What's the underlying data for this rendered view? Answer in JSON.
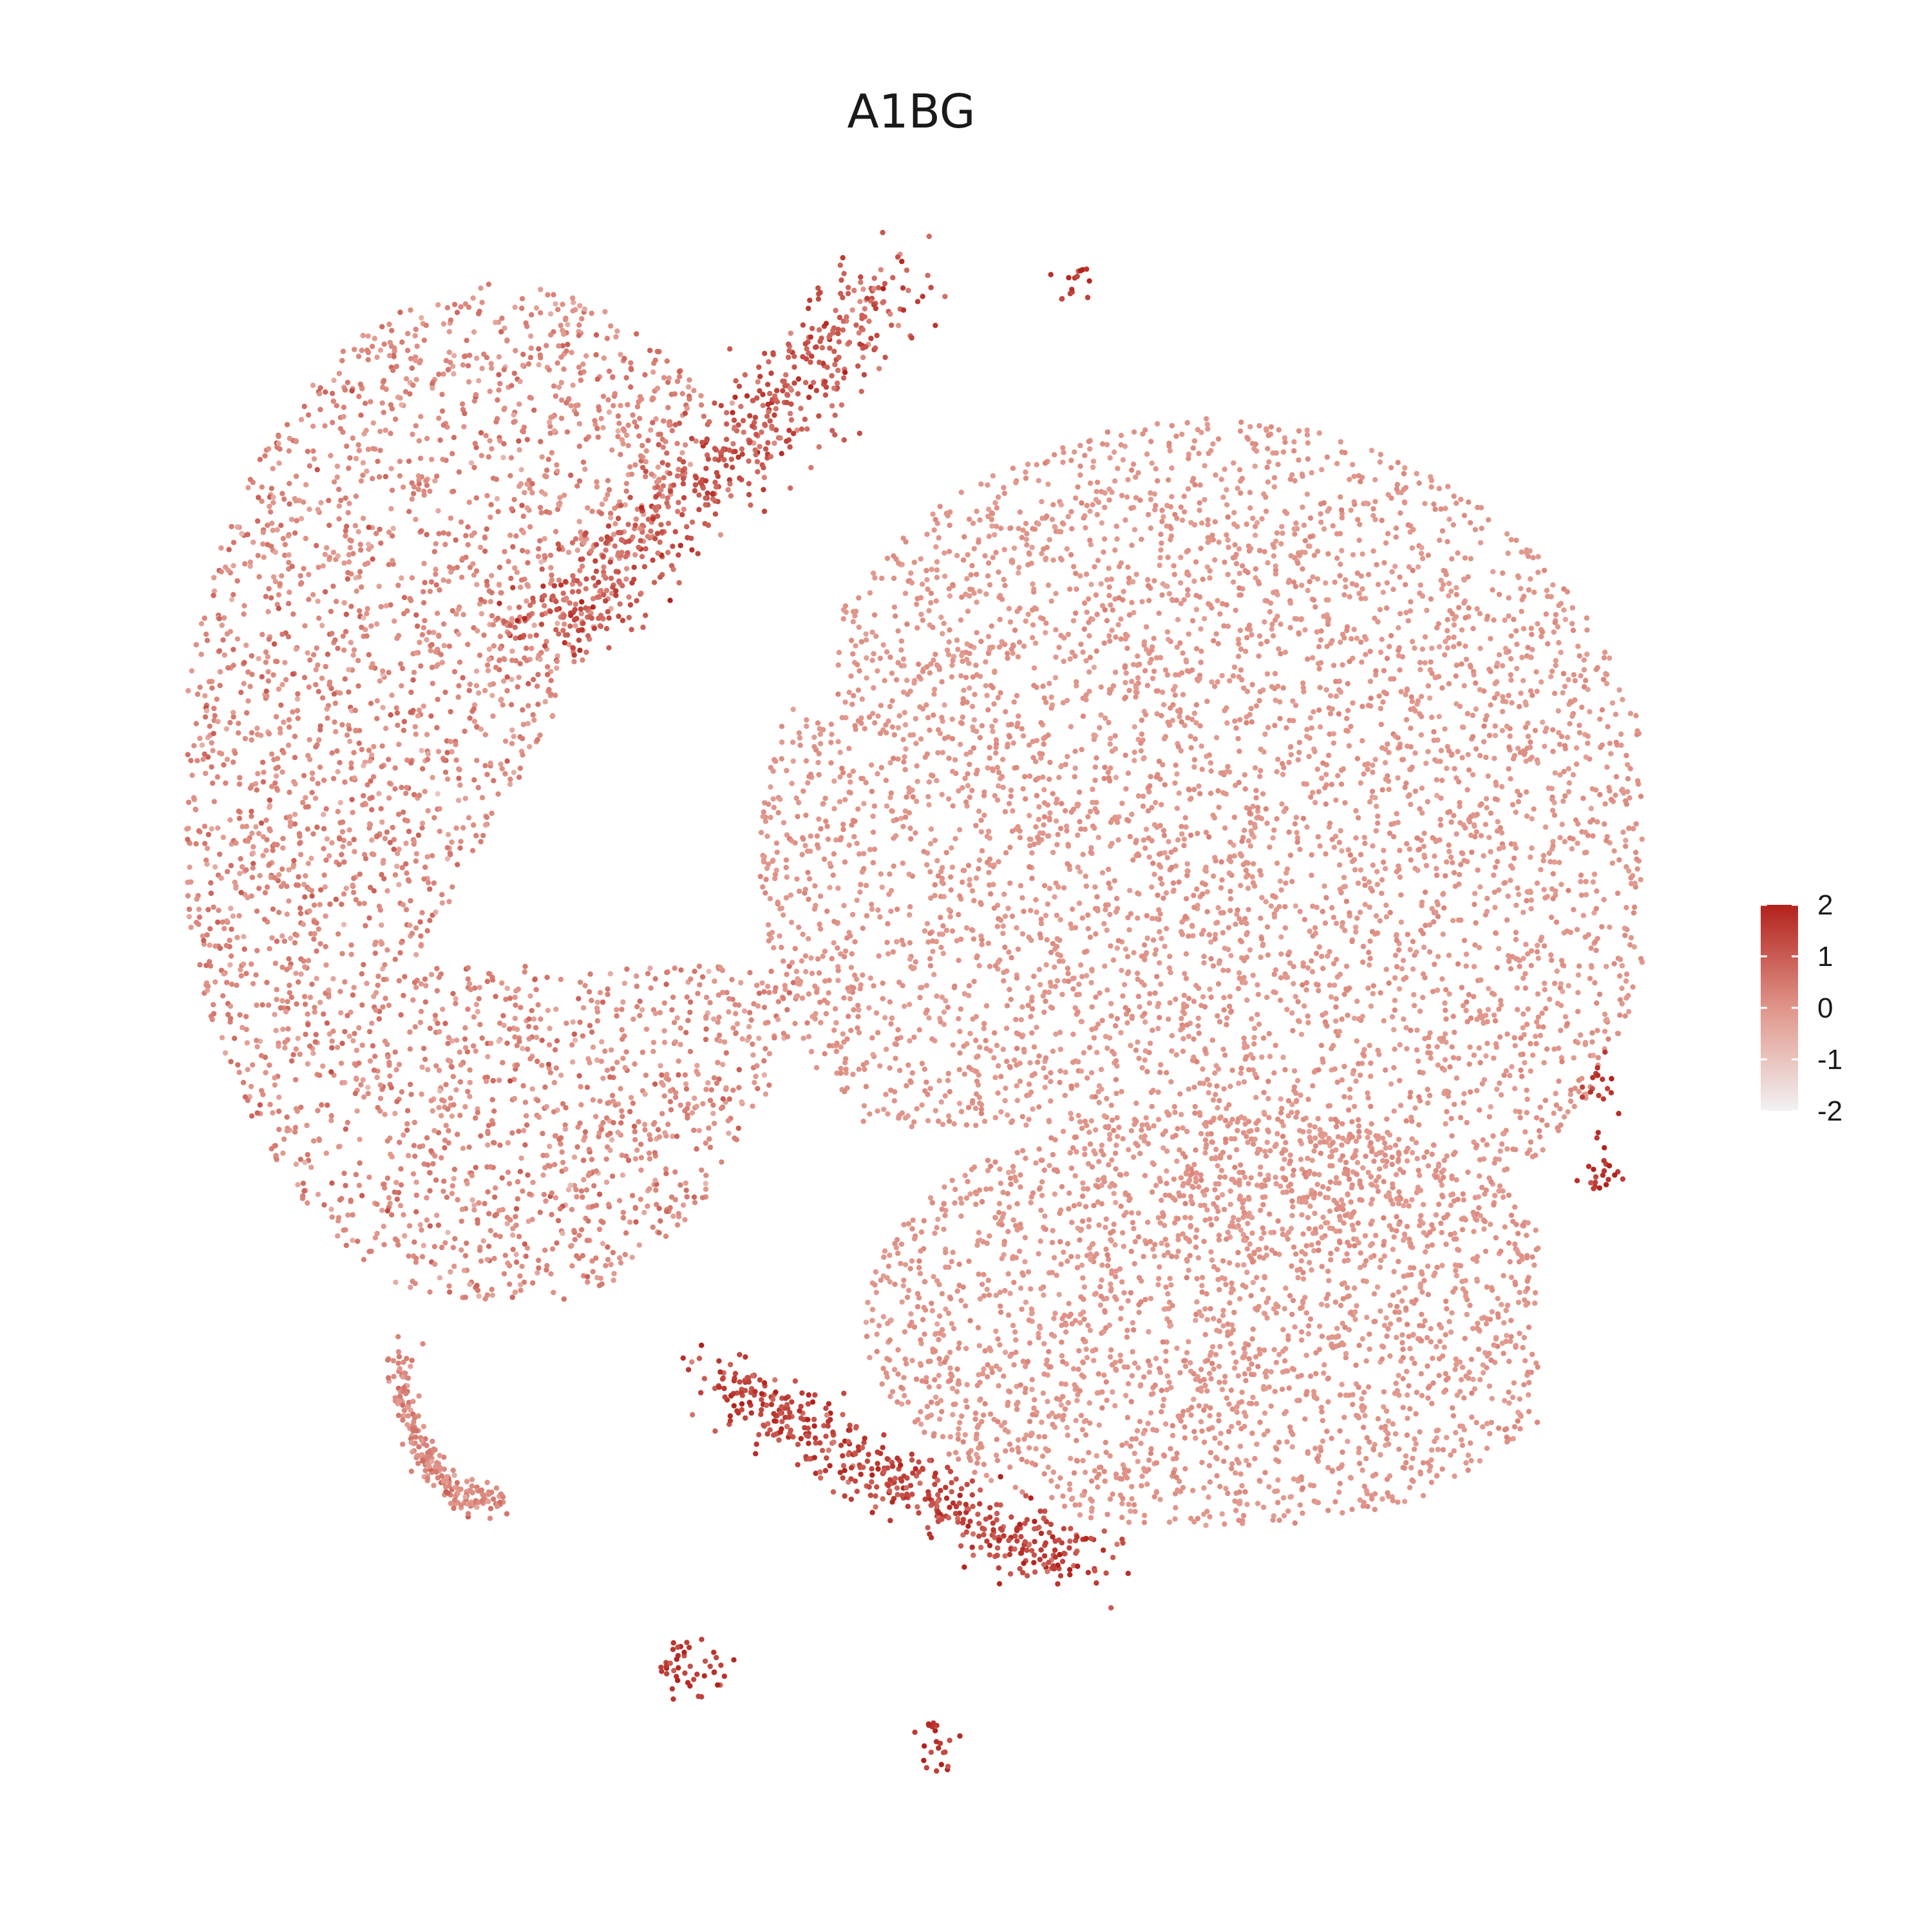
{
  "chart_data": {
    "type": "scatter",
    "title": "A1BG",
    "xlabel": "",
    "ylabel": "",
    "axes_visible": false,
    "grid": false,
    "legend_placement": "right",
    "colorbar": {
      "ticks": [
        "2",
        "1",
        "0",
        "-1",
        "-2"
      ],
      "range": [
        -2,
        2
      ],
      "colors": {
        "low": "#f2f2f2",
        "mid": "#e0958a",
        "high": "#b2221c"
      }
    },
    "point_color_default": "#e0958a",
    "clusters": [
      {
        "id": "upper-left-lobe",
        "n": 3200,
        "value_mean": 0.2,
        "value_sd": 0.35
      },
      {
        "id": "upper-left-ridge",
        "n": 600,
        "value_mean": 1.0,
        "value_sd": 0.45
      },
      {
        "id": "right-lobe",
        "n": 4600,
        "value_mean": 0.0,
        "value_sd": 0.12
      },
      {
        "id": "lower-right-lobe",
        "n": 2200,
        "value_mean": 0.0,
        "value_sd": 0.12
      },
      {
        "id": "lower-left-arc",
        "n": 220,
        "value_mean": 0.2,
        "value_sd": 0.3
      },
      {
        "id": "bottom-streak",
        "n": 500,
        "value_mean": 1.3,
        "value_sd": 0.4
      },
      {
        "id": "small-islands",
        "n": 120,
        "value_mean": 1.6,
        "value_sd": 0.3
      }
    ]
  }
}
